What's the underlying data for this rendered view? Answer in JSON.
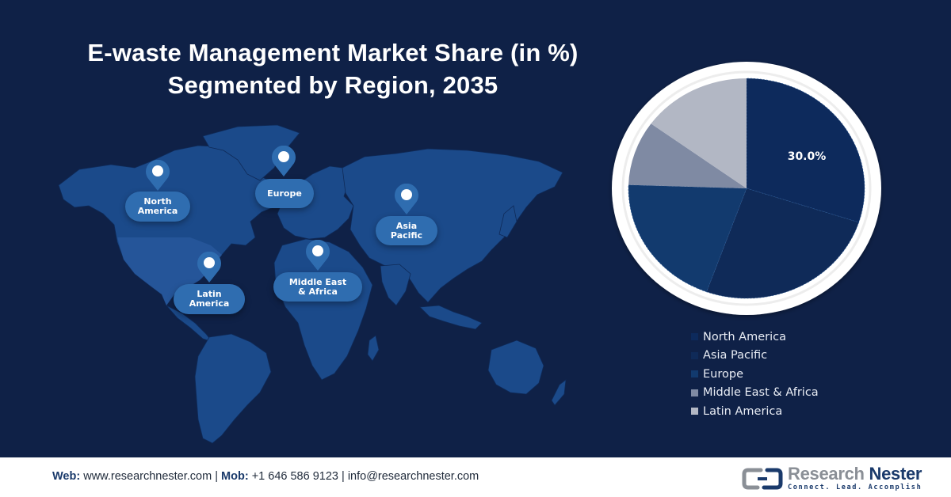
{
  "header": {
    "title_line1": "E-waste Management Market Share (in %)",
    "title_line2": "Segmented by Region, 2035"
  },
  "map": {
    "pins": [
      {
        "label": "North\nAmerica",
        "icon": "location-pin-icon"
      },
      {
        "label": "Europe",
        "icon": "location-pin-icon"
      },
      {
        "label": "Asia\nPacific",
        "icon": "location-pin-icon"
      },
      {
        "label": "Latin\nAmerica",
        "icon": "location-pin-icon"
      },
      {
        "label": "Middle East\n& Africa",
        "icon": "location-pin-icon"
      }
    ]
  },
  "pie": {
    "data_label": "30.0%"
  },
  "legend": {
    "items": [
      {
        "label": "North America",
        "color": "#0d2a5c"
      },
      {
        "label": "Asia Pacific",
        "color": "#0f2a58"
      },
      {
        "label": "Europe",
        "color": "#123a6e"
      },
      {
        "label": "Middle East & Africa",
        "color": "#7f8aa3"
      },
      {
        "label": "Latin America",
        "color": "#b2b7c4"
      }
    ]
  },
  "chart_data": {
    "type": "pie",
    "title": "E-waste Management Market Share (in %) Segmented by Region, 2035",
    "categories": [
      "North America",
      "Asia Pacific",
      "Europe",
      "Middle East & Africa",
      "Latin America"
    ],
    "values": [
      30.0,
      25.5,
      20.0,
      9.5,
      15.0
    ],
    "colors": [
      "#0d2a5c",
      "#0f2a58",
      "#123a6e",
      "#7f8aa3",
      "#b2b7c4"
    ],
    "data_labels": {
      "North America": "30.0%"
    },
    "start_angle": "12 o'clock, clockwise",
    "legend_position": "bottom-right"
  },
  "footer": {
    "web_label": "Web:",
    "web_value": "www.researchnester.com",
    "separator": "|",
    "mob_label": "Mob:",
    "mob_value": "+1 646 586 9123",
    "email": "info@researchnester.com",
    "logo_name_part1": "Research",
    "logo_name_part2": "Nester",
    "logo_tagline": "Connect. Lead. Accomplish"
  },
  "colors": {
    "background": "#0f2147",
    "map_land": "#1b4a8a",
    "pin": "#2f6db0",
    "ring": "#ffffff"
  }
}
